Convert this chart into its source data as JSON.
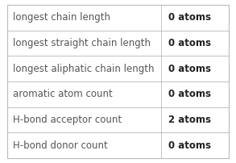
{
  "rows": [
    {
      "label": "longest chain length",
      "value": "0 atoms"
    },
    {
      "label": "longest straight chain length",
      "value": "0 atoms"
    },
    {
      "label": "longest aliphatic chain length",
      "value": "0 atoms"
    },
    {
      "label": "aromatic atom count",
      "value": "0 atoms"
    },
    {
      "label": "H-bond acceptor count",
      "value": "2 atoms"
    },
    {
      "label": "H-bond donor count",
      "value": "0 atoms"
    }
  ],
  "col_split": 0.695,
  "background_color": "#ffffff",
  "border_color": "#bbbbbb",
  "text_color_label": "#555555",
  "text_color_value": "#222222",
  "font_size": 8.5,
  "fig_width": 2.93,
  "fig_height": 2.02,
  "dpi": 100
}
